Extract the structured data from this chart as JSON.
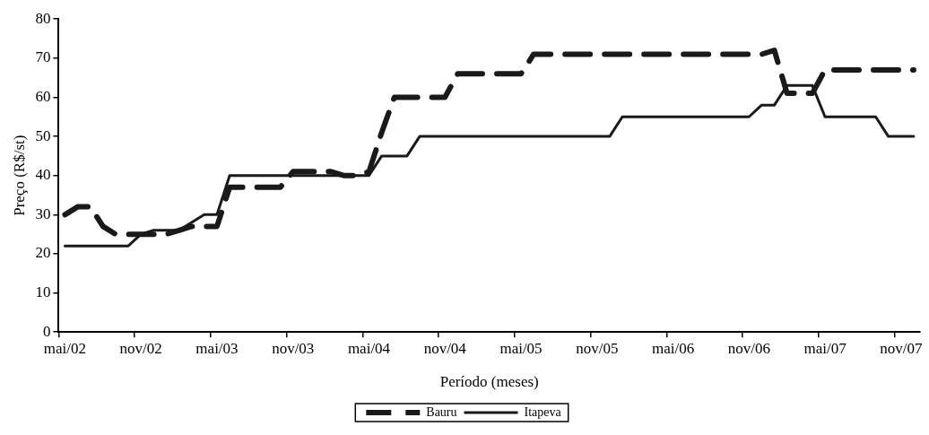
{
  "chart_data": {
    "type": "line",
    "xlabel": "Período (meses)",
    "ylabel": "Preço (R$/st)",
    "categories": [
      "mai/02",
      null,
      null,
      null,
      null,
      null,
      "nov/02",
      null,
      null,
      null,
      null,
      null,
      "mai/03",
      null,
      null,
      null,
      null,
      null,
      "nov/03",
      null,
      null,
      null,
      null,
      null,
      "mai/04",
      null,
      null,
      null,
      null,
      null,
      "nov/04",
      null,
      null,
      null,
      null,
      null,
      "mai/05",
      null,
      null,
      null,
      null,
      null,
      "nov/05",
      null,
      null,
      null,
      null,
      null,
      "mai/06",
      null,
      null,
      null,
      null,
      null,
      "nov/06",
      null,
      null,
      null,
      null,
      null,
      "mai/07",
      null,
      null,
      null,
      null,
      null,
      "nov/07",
      null
    ],
    "series": [
      {
        "name": "Bauru",
        "color": "#1a1a1a",
        "line_style": "dashed",
        "values": [
          30,
          32,
          32,
          27,
          25,
          25,
          25,
          25,
          25,
          26,
          27,
          27,
          27,
          37,
          37,
          37,
          37,
          37,
          41,
          41,
          41,
          41,
          40,
          40,
          41,
          51,
          60,
          60,
          60,
          60,
          60,
          66,
          66,
          66,
          66,
          66,
          66,
          71,
          71,
          71,
          71,
          71,
          71,
          71,
          71,
          71,
          71,
          71,
          71,
          71,
          71,
          71,
          71,
          71,
          71,
          71,
          72,
          61,
          61,
          61,
          67,
          67,
          67,
          67,
          67,
          67,
          67,
          67
        ]
      },
      {
        "name": "Itapeva",
        "color": "#1a1a1a",
        "line_style": "solid",
        "values": [
          22,
          22,
          22,
          22,
          22,
          22,
          25,
          26,
          26,
          26,
          28,
          30,
          30,
          40,
          40,
          40,
          40,
          40,
          40,
          40,
          40,
          40,
          40,
          40,
          40,
          45,
          45,
          45,
          50,
          50,
          50,
          50,
          50,
          50,
          50,
          50,
          50,
          50,
          50,
          50,
          50,
          50,
          50,
          50,
          55,
          55,
          55,
          55,
          55,
          55,
          55,
          55,
          55,
          55,
          55,
          58,
          58,
          63,
          63,
          63,
          55,
          55,
          55,
          55,
          55,
          50,
          50,
          50
        ]
      }
    ],
    "ylim": [
      0,
      80
    ],
    "yticks": [
      0,
      10,
      20,
      30,
      40,
      50,
      60,
      70,
      80
    ],
    "grid": false,
    "legend": "bottom",
    "marker": "none"
  }
}
